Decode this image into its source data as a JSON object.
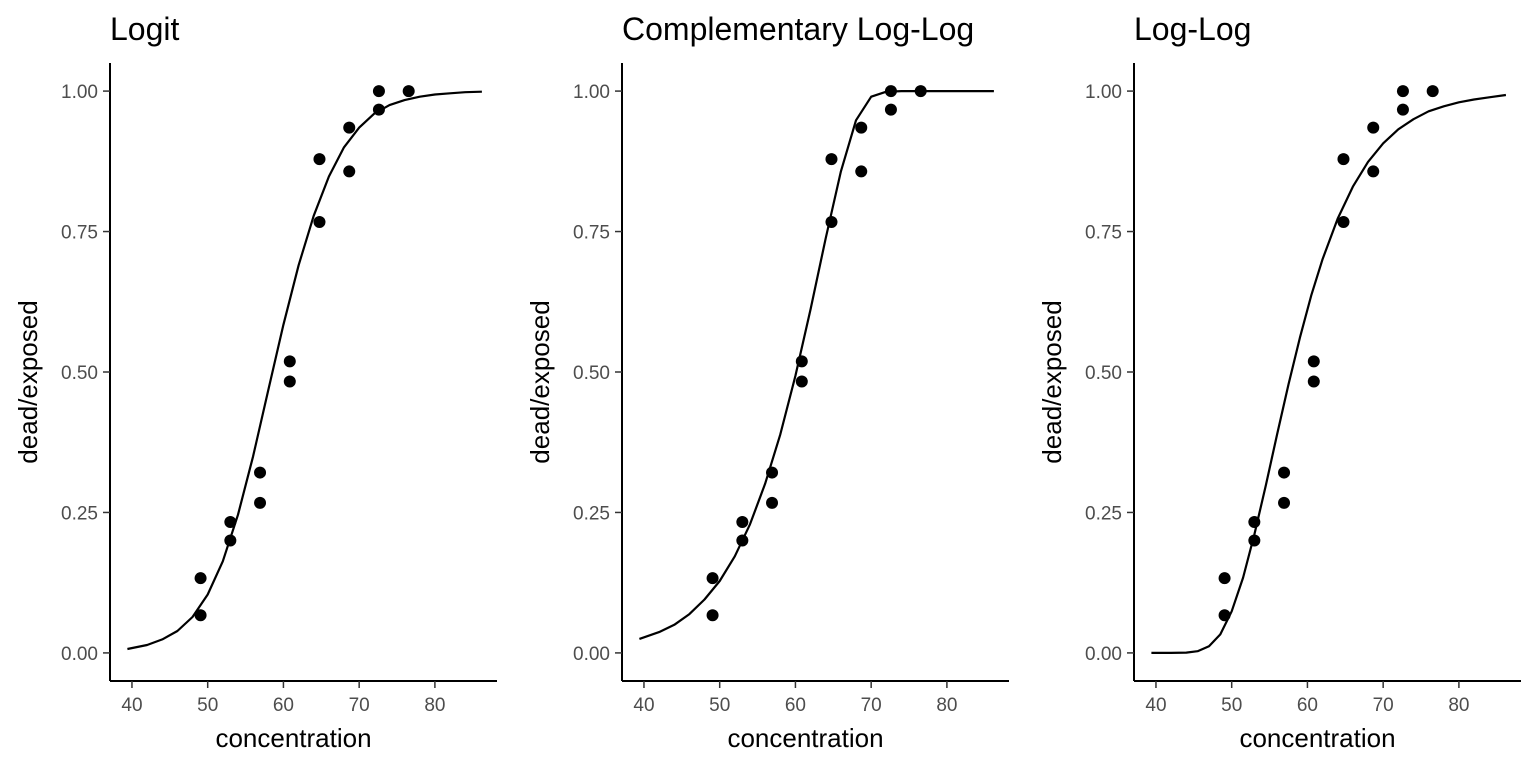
{
  "chart_data": [
    {
      "type": "scatter",
      "title": "Logit",
      "xlabel": "concentration",
      "ylabel": "dead/exposed",
      "xlim": [
        37.1,
        88.2
      ],
      "ylim": [
        -0.05,
        1.05
      ],
      "x_ticks": [
        40,
        50,
        60,
        70,
        80
      ],
      "x_tick_labels": [
        "40",
        "50",
        "60",
        "70",
        "80"
      ],
      "y_ticks": [
        0,
        0.25,
        0.5,
        0.75,
        1
      ],
      "y_tick_labels": [
        "0.00",
        "0.25",
        "0.50",
        "0.75",
        "1.00"
      ],
      "grid": false,
      "legend": "none",
      "points": [
        {
          "x": 49.06,
          "y": 0.067
        },
        {
          "x": 49.06,
          "y": 0.133
        },
        {
          "x": 52.99,
          "y": 0.2
        },
        {
          "x": 52.99,
          "y": 0.233
        },
        {
          "x": 56.91,
          "y": 0.267
        },
        {
          "x": 56.91,
          "y": 0.321
        },
        {
          "x": 60.84,
          "y": 0.483
        },
        {
          "x": 60.84,
          "y": 0.519
        },
        {
          "x": 64.76,
          "y": 0.767
        },
        {
          "x": 64.76,
          "y": 0.879
        },
        {
          "x": 68.69,
          "y": 0.857
        },
        {
          "x": 68.69,
          "y": 0.935
        },
        {
          "x": 72.61,
          "y": 0.967
        },
        {
          "x": 72.61,
          "y": 1.0
        },
        {
          "x": 76.54,
          "y": 1.0
        }
      ],
      "fitted_curve": {
        "x": [
          39.4,
          42,
          44,
          46,
          48,
          50,
          52,
          54,
          56,
          58,
          60,
          62,
          64,
          66,
          68,
          70,
          72,
          74,
          76,
          78,
          80,
          82,
          84,
          86.2
        ],
        "y": [
          0.007,
          0.014,
          0.024,
          0.039,
          0.064,
          0.104,
          0.163,
          0.246,
          0.35,
          0.468,
          0.584,
          0.69,
          0.778,
          0.848,
          0.9,
          0.935,
          0.96,
          0.975,
          0.984,
          0.99,
          0.994,
          0.996,
          0.998,
          0.999
        ]
      }
    },
    {
      "type": "scatter",
      "title": "Complementary Log-Log",
      "xlabel": "concentration",
      "ylabel": "dead/exposed",
      "xlim": [
        37.1,
        88.2
      ],
      "ylim": [
        -0.05,
        1.05
      ],
      "x_ticks": [
        40,
        50,
        60,
        70,
        80
      ],
      "x_tick_labels": [
        "40",
        "50",
        "60",
        "70",
        "80"
      ],
      "y_ticks": [
        0,
        0.25,
        0.5,
        0.75,
        1
      ],
      "y_tick_labels": [
        "0.00",
        "0.25",
        "0.50",
        "0.75",
        "1.00"
      ],
      "grid": false,
      "legend": "none",
      "points": [
        {
          "x": 49.06,
          "y": 0.067
        },
        {
          "x": 49.06,
          "y": 0.133
        },
        {
          "x": 52.99,
          "y": 0.2
        },
        {
          "x": 52.99,
          "y": 0.233
        },
        {
          "x": 56.91,
          "y": 0.267
        },
        {
          "x": 56.91,
          "y": 0.321
        },
        {
          "x": 60.84,
          "y": 0.483
        },
        {
          "x": 60.84,
          "y": 0.519
        },
        {
          "x": 64.76,
          "y": 0.767
        },
        {
          "x": 64.76,
          "y": 0.879
        },
        {
          "x": 68.69,
          "y": 0.857
        },
        {
          "x": 68.69,
          "y": 0.935
        },
        {
          "x": 72.61,
          "y": 0.967
        },
        {
          "x": 72.61,
          "y": 1.0
        },
        {
          "x": 76.54,
          "y": 1.0
        }
      ],
      "fitted_curve": {
        "x": [
          39.4,
          42,
          44,
          46,
          48,
          50,
          52,
          54,
          56,
          58,
          60,
          62,
          64,
          66,
          68,
          70,
          72,
          74,
          76,
          78,
          80,
          82,
          84,
          86.2
        ],
        "y": [
          0.025,
          0.037,
          0.05,
          0.069,
          0.095,
          0.128,
          0.172,
          0.229,
          0.301,
          0.389,
          0.493,
          0.612,
          0.738,
          0.857,
          0.948,
          0.99,
          0.999,
          1.0,
          1.0,
          1.0,
          1.0,
          1.0,
          1.0,
          1.0
        ]
      }
    },
    {
      "type": "scatter",
      "title": "Log-Log",
      "xlabel": "concentration",
      "ylabel": "dead/exposed",
      "xlim": [
        37.1,
        88.2
      ],
      "ylim": [
        -0.05,
        1.05
      ],
      "x_ticks": [
        40,
        50,
        60,
        70,
        80
      ],
      "x_tick_labels": [
        "40",
        "50",
        "60",
        "70",
        "80"
      ],
      "y_ticks": [
        0,
        0.25,
        0.5,
        0.75,
        1
      ],
      "y_tick_labels": [
        "0.00",
        "0.25",
        "0.50",
        "0.75",
        "1.00"
      ],
      "grid": false,
      "legend": "none",
      "points": [
        {
          "x": 49.06,
          "y": 0.067
        },
        {
          "x": 49.06,
          "y": 0.133
        },
        {
          "x": 52.99,
          "y": 0.2
        },
        {
          "x": 52.99,
          "y": 0.233
        },
        {
          "x": 56.91,
          "y": 0.267
        },
        {
          "x": 56.91,
          "y": 0.321
        },
        {
          "x": 60.84,
          "y": 0.483
        },
        {
          "x": 60.84,
          "y": 0.519
        },
        {
          "x": 64.76,
          "y": 0.767
        },
        {
          "x": 64.76,
          "y": 0.879
        },
        {
          "x": 68.69,
          "y": 0.857
        },
        {
          "x": 68.69,
          "y": 0.935
        },
        {
          "x": 72.61,
          "y": 0.967
        },
        {
          "x": 72.61,
          "y": 1.0
        },
        {
          "x": 76.54,
          "y": 1.0
        }
      ],
      "fitted_curve": {
        "x": [
          39.4,
          42,
          44,
          45.5,
          47,
          48.5,
          50,
          51.5,
          53,
          54.5,
          56,
          57.5,
          59,
          60.5,
          62,
          64,
          66,
          68,
          70,
          72,
          74,
          76,
          78,
          80,
          82,
          84,
          86.2
        ],
        "y": [
          0.0,
          0.0,
          0.0005,
          0.003,
          0.012,
          0.033,
          0.074,
          0.134,
          0.211,
          0.298,
          0.389,
          0.478,
          0.561,
          0.636,
          0.701,
          0.773,
          0.83,
          0.874,
          0.907,
          0.932,
          0.95,
          0.964,
          0.973,
          0.98,
          0.985,
          0.989,
          0.993
        ]
      }
    }
  ]
}
